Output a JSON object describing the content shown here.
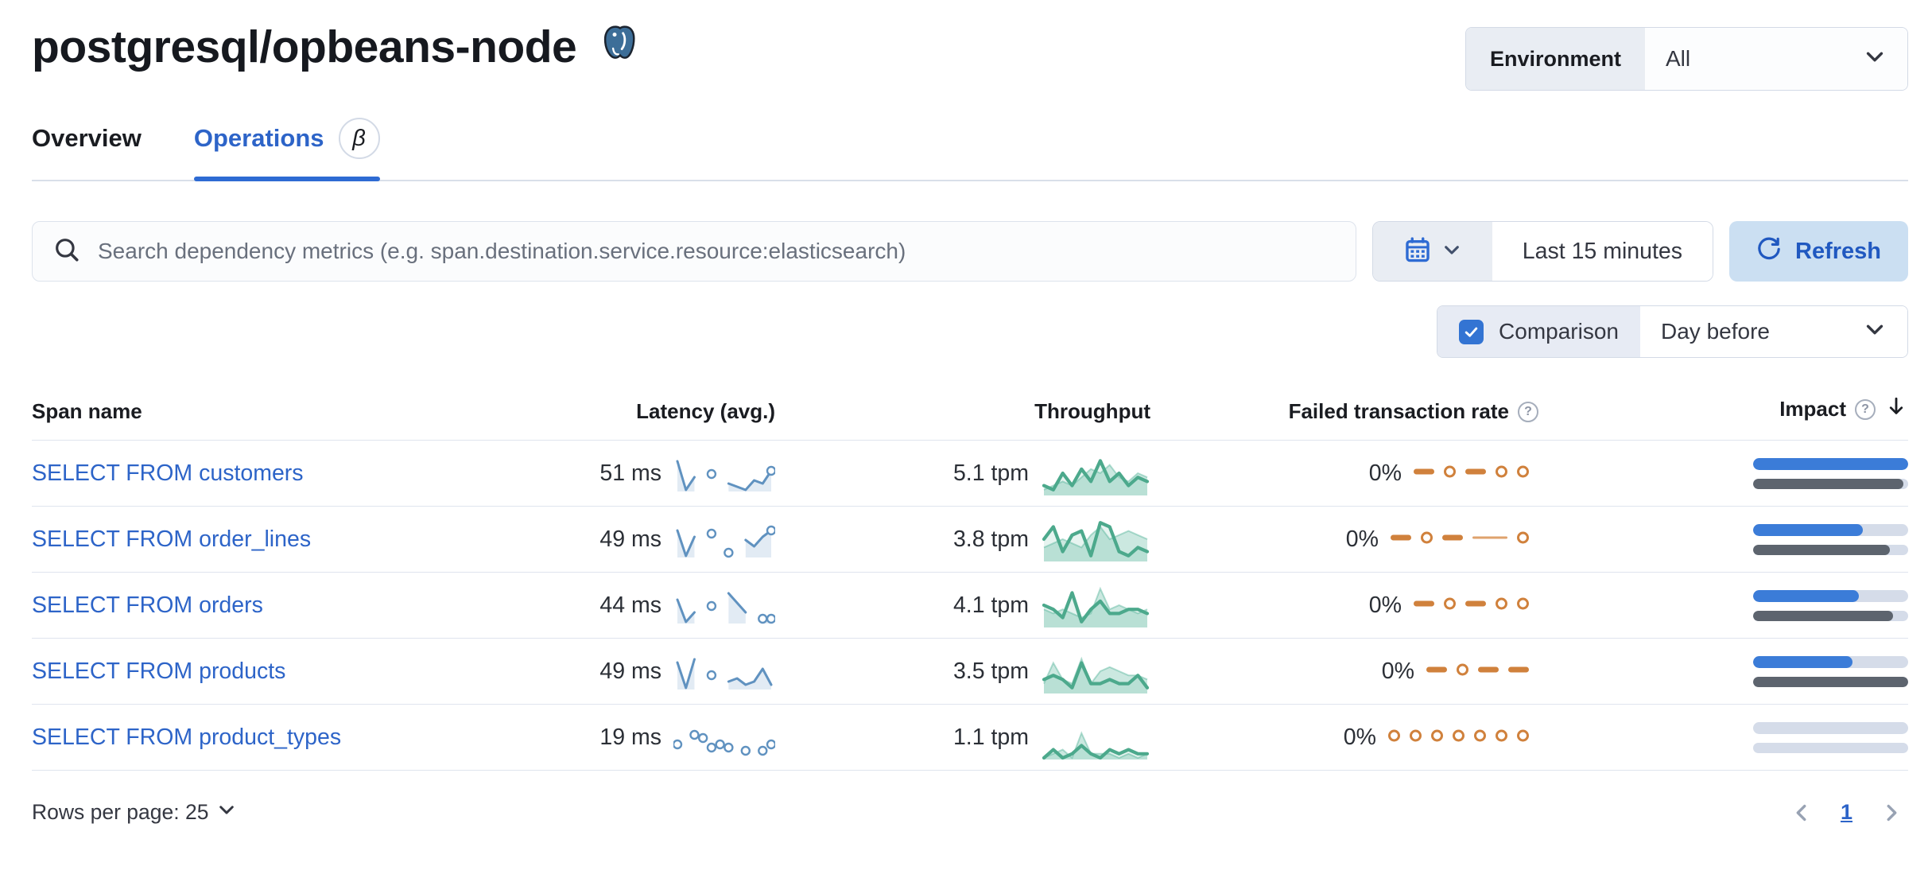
{
  "page": {
    "title": "postgresql/opbeans-node",
    "title_icon": "postgresql-elephant"
  },
  "environment": {
    "label": "Environment",
    "value": "All"
  },
  "tabs": [
    {
      "label": "Overview",
      "active": false
    },
    {
      "label": "Operations",
      "active": true,
      "badge": "β"
    }
  ],
  "search": {
    "placeholder": "Search dependency metrics (e.g. span.destination.service.resource:elasticsearch)"
  },
  "time_picker": {
    "range_label": "Last 15 minutes"
  },
  "refresh": {
    "label": "Refresh"
  },
  "comparison": {
    "label": "Comparison",
    "checked": true,
    "selected": "Day before"
  },
  "table": {
    "headers": {
      "span": "Span name",
      "latency": "Latency (avg.)",
      "throughput": "Throughput",
      "failed": "Failed transaction rate",
      "impact": "Impact"
    },
    "sorted_column": "impact",
    "sort_direction": "desc",
    "rows": [
      {
        "span_name": "SELECT FROM customers",
        "latency": "51 ms",
        "throughput": "5.1 tpm",
        "failed_rate": "0%",
        "latency_spark": {
          "line": true,
          "values": [
            9,
            0,
            4,
            null,
            5,
            null,
            2,
            1,
            0,
            3,
            2,
            6
          ],
          "dots": [
            4,
            11
          ]
        },
        "throughput_spark": {
          "current": [
            2,
            1,
            5,
            2,
            6,
            3,
            8,
            3,
            5,
            2,
            4,
            3
          ],
          "previous": [
            1,
            2,
            3,
            2,
            4,
            6,
            5,
            7,
            4,
            3,
            5,
            4
          ]
        },
        "failed_pattern": [
          "dash",
          "dot",
          "dash",
          "dot",
          "dot"
        ],
        "impact": {
          "current": 100,
          "previous": 97
        }
      },
      {
        "span_name": "SELECT FROM order_lines",
        "latency": "49 ms",
        "throughput": "3.8 tpm",
        "failed_rate": "0%",
        "latency_spark": {
          "line": true,
          "values": [
            8,
            0,
            6,
            null,
            7,
            null,
            1,
            null,
            5,
            3,
            6,
            8
          ],
          "dots": [
            4,
            6,
            11
          ]
        },
        "throughput_spark": {
          "current": [
            5,
            8,
            2,
            6,
            7,
            1,
            9,
            8,
            2,
            1,
            3,
            2
          ],
          "previous": [
            3,
            4,
            5,
            4,
            3,
            6,
            8,
            5,
            6,
            7,
            6,
            5
          ]
        },
        "failed_pattern": [
          "dash",
          "dot",
          "dash",
          "line",
          "dot"
        ],
        "impact": {
          "current": 71,
          "previous": 88
        }
      },
      {
        "span_name": "SELECT FROM orders",
        "latency": "44 ms",
        "throughput": "4.1 tpm",
        "failed_rate": "0%",
        "latency_spark": {
          "line": true,
          "values": [
            7,
            0,
            3,
            null,
            5,
            null,
            9,
            6,
            3,
            null,
            1,
            1
          ],
          "dots": [
            4,
            10,
            11
          ]
        },
        "throughput_spark": {
          "current": [
            5,
            4,
            2,
            8,
            1,
            4,
            6,
            3,
            3,
            4,
            4,
            3
          ],
          "previous": [
            4,
            3,
            4,
            3,
            2,
            3,
            9,
            4,
            5,
            4,
            3,
            4
          ]
        },
        "failed_pattern": [
          "dash",
          "dot",
          "dash",
          "dot",
          "dot"
        ],
        "impact": {
          "current": 68,
          "previous": 90
        }
      },
      {
        "span_name": "SELECT FROM products",
        "latency": "49 ms",
        "throughput": "3.5 tpm",
        "failed_rate": "0%",
        "latency_spark": {
          "line": true,
          "values": [
            8,
            0,
            9,
            null,
            4,
            null,
            2,
            3,
            1,
            2,
            6,
            1
          ],
          "dots": [
            4
          ]
        },
        "throughput_spark": {
          "current": [
            3,
            4,
            3,
            1,
            7,
            2,
            2,
            3,
            2,
            2,
            4,
            1
          ],
          "previous": [
            2,
            7,
            3,
            2,
            8,
            2,
            5,
            6,
            5,
            4,
            4,
            3
          ]
        },
        "failed_pattern": [
          "dash",
          "dot",
          "dash",
          "dash"
        ],
        "impact": {
          "current": 64,
          "previous": 100
        }
      },
      {
        "span_name": "SELECT FROM product_types",
        "latency": "19 ms",
        "throughput": "1.1 tpm",
        "failed_rate": "0%",
        "latency_spark": {
          "line": false,
          "values": [
            3,
            null,
            6,
            5,
            2,
            3,
            2,
            null,
            1,
            null,
            1,
            3
          ],
          "dots": []
        },
        "throughput_spark": {
          "current": [
            0,
            2,
            0,
            1,
            3,
            1,
            0,
            2,
            1,
            2,
            1,
            1
          ],
          "previous": [
            0,
            1,
            2,
            0,
            6,
            1,
            1,
            1,
            0,
            1,
            0,
            1
          ]
        },
        "failed_pattern": [
          "dot",
          "dot",
          "dot",
          "dot",
          "dot",
          "dot",
          "dot"
        ],
        "impact": {
          "current": 0,
          "previous": 0
        }
      }
    ]
  },
  "footer": {
    "rows_per_page": "Rows per page: 25",
    "page": "1"
  },
  "colors": {
    "link": "#2d64c8",
    "accent_blue": "#2e6bd3",
    "latency_spark": "#6092c0",
    "throughput_spark": "#54b399",
    "failed_spark": "#d0813c",
    "impact_bar": "#3b7cd8",
    "impact_prev_bar": "#5d646e",
    "bar_track": "#d5dce9"
  }
}
